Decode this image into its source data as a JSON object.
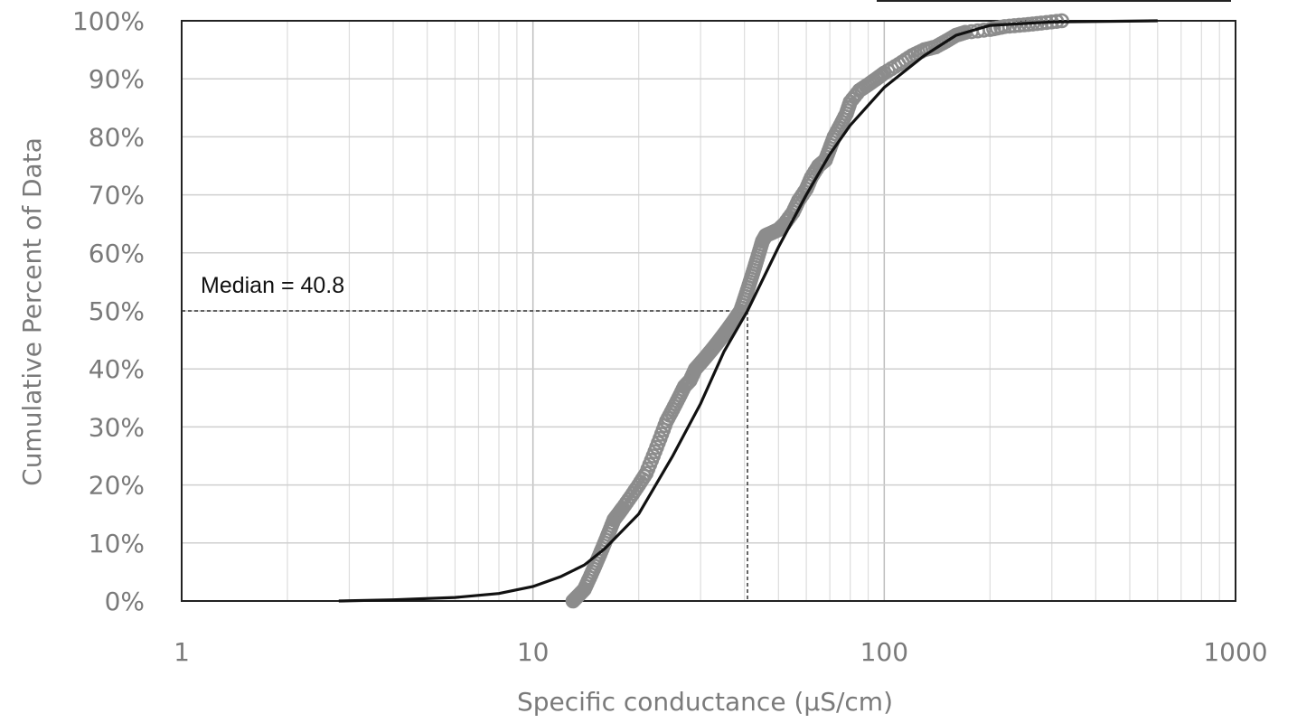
{
  "chart_data": {
    "type": "scatter",
    "xlabel": "Specific conductance (µS/cm)",
    "ylabel": "Cumulative Percent of Data",
    "x_scale": "log",
    "xlim": [
      1,
      1000
    ],
    "ylim": [
      0,
      100
    ],
    "x_ticks": [
      "1",
      "10",
      "100",
      "1000"
    ],
    "y_ticks": [
      "0%",
      "10%",
      "20%",
      "30%",
      "40%",
      "50%",
      "60%",
      "70%",
      "80%",
      "90%",
      "100%"
    ],
    "grid": true,
    "annotation": {
      "text": "Median = 40.8",
      "x": 40.8,
      "y": 50
    },
    "fitted_curve": {
      "color": "#111111",
      "x": [
        2.8,
        4,
        6,
        8,
        10,
        12,
        14,
        16,
        20,
        25,
        30,
        35,
        40.8,
        50,
        60,
        70,
        80,
        100,
        130,
        160,
        200,
        300,
        600
      ],
      "y": [
        0,
        0.2,
        0.6,
        1.3,
        2.5,
        4.2,
        6.2,
        9,
        15,
        25,
        34,
        43,
        50,
        61,
        70,
        77,
        82,
        88.5,
        94,
        97.5,
        99.2,
        99.8,
        100
      ]
    },
    "observed_points": {
      "color": "#8c8c8c",
      "x": [
        13.0,
        13.5,
        14.0,
        14.5,
        15.0,
        15.5,
        16.0,
        16.5,
        17.0,
        17.5,
        18.0,
        19.0,
        20.0,
        21.0,
        22.0,
        23.0,
        24.0,
        25.0,
        26.0,
        27.0,
        28.0,
        29.0,
        30.0,
        31.0,
        32.0,
        33.0,
        34.0,
        35.0,
        36.0,
        37.0,
        38.0,
        39.0,
        40.0,
        41.0,
        42.0,
        43.0,
        44.0,
        45.0,
        46.0,
        48.0,
        50.0,
        52.0,
        55.0,
        57.0,
        60.0,
        62.0,
        65.0,
        68.0,
        70.0,
        72.0,
        75.0,
        78.0,
        80.0,
        85.0,
        90.0,
        95.0,
        100.0,
        110.0,
        120.0,
        130.0,
        140.0,
        150.0,
        160.0,
        170.0,
        200.0,
        220.0,
        250.0,
        280.0,
        320.0
      ],
      "y": [
        0.0,
        1.0,
        2.0,
        4.0,
        6.0,
        8.0,
        10.0,
        12.0,
        14.0,
        15.0,
        16.0,
        18.0,
        20.0,
        22.0,
        25.0,
        28.0,
        31.0,
        33.0,
        35.0,
        37.0,
        38.0,
        40.0,
        41.0,
        42.0,
        43.0,
        44.0,
        45.0,
        46.0,
        47.0,
        48.0,
        49.0,
        50.0,
        52.0,
        54.0,
        56.0,
        58.0,
        60.0,
        62.0,
        63.0,
        63.5,
        64.0,
        65.0,
        67.0,
        69.0,
        71.0,
        73.0,
        75.0,
        76.0,
        78.0,
        80.0,
        82.0,
        84.0,
        86.0,
        88.0,
        89.0,
        90.0,
        91.0,
        92.5,
        94.0,
        95.0,
        95.5,
        96.5,
        97.5,
        98.0,
        98.5,
        99.0,
        99.3,
        99.6,
        100.0
      ]
    }
  }
}
